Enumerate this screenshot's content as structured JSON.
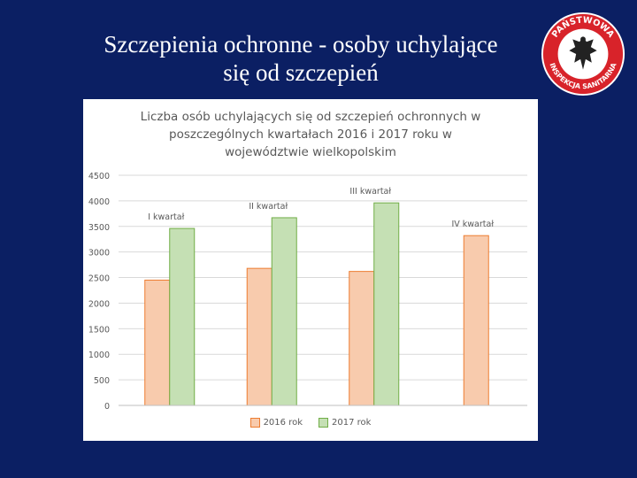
{
  "slide": {
    "title_line1": "Szczepienia ochronne - osoby uchylające",
    "title_line2": "się od szczepień"
  },
  "logo": {
    "ring_text_top": "PAŃSTWOWA",
    "ring_text_bottom": "INSPEKCJA SANITARNA",
    "ring_color": "#d8232a"
  },
  "colors": {
    "background": "#0b1f63",
    "series_2016_fill": "#f8cbad",
    "series_2016_stroke": "#ed7d31",
    "series_2017_fill": "#c5e0b4",
    "series_2017_stroke": "#70ad47"
  },
  "chart_data": {
    "type": "bar",
    "title_lines": [
      "Liczba osób uchylających się od szczepień ochronnych w",
      "poszczególnych  kwartałach 2016 i 2017 roku w",
      "województwie wielkopolskim"
    ],
    "categories": [
      "I kwartał",
      "II kwartał",
      "III kwartał",
      "IV kwartał"
    ],
    "series": [
      {
        "name": "2016 rok",
        "values": [
          2450,
          2680,
          2620,
          3320
        ]
      },
      {
        "name": "2017 rok",
        "values": [
          3460,
          3670,
          3960,
          null
        ]
      }
    ],
    "ylim": [
      0,
      4500
    ],
    "yticks": [
      0,
      500,
      1000,
      1500,
      2000,
      2500,
      3000,
      3500,
      4000,
      4500
    ],
    "grid": true,
    "legend": "bottom"
  }
}
